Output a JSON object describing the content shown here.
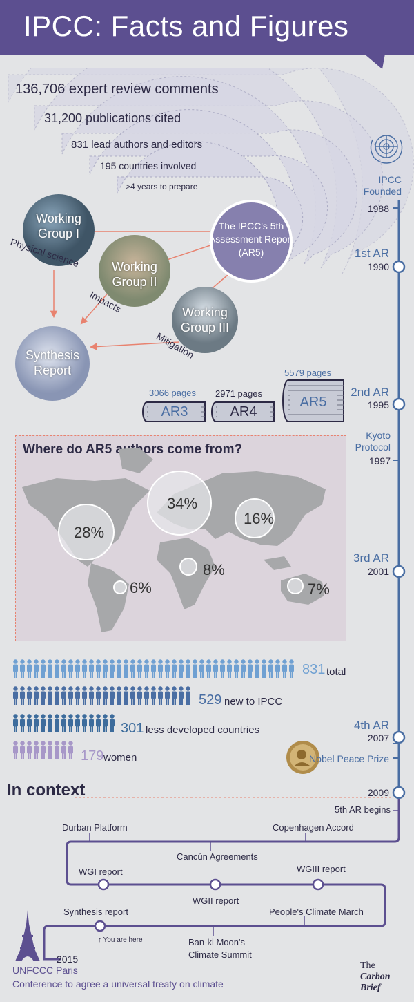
{
  "header": {
    "title": "IPCC: Facts and Figures"
  },
  "facts": [
    "136,706 expert review comments",
    "31,200 publications cited",
    "831 lead authors and editors",
    "195 countries involved",
    ">4 years to prepare"
  ],
  "diagram": {
    "wg1": [
      "Working",
      "Group I"
    ],
    "wg2": [
      "Working",
      "Group II"
    ],
    "wg3": [
      "Working",
      "Group III"
    ],
    "synthesis": [
      "Synthesis",
      "Report"
    ],
    "ar5": [
      "The IPCC's 5th",
      "Assessment Report",
      "(AR5)"
    ],
    "edge_physical": "Physical science",
    "edge_impacts": "Impacts",
    "edge_mitigation": "Mitigation"
  },
  "reports": [
    {
      "name": "AR3",
      "pages": "3066 pages"
    },
    {
      "name": "AR4",
      "pages": "2971 pages"
    },
    {
      "name": "AR5",
      "pages": "5579 pages"
    }
  ],
  "map": {
    "title": "Where do AR5 authors come from?",
    "north_america": "28%",
    "europe": "34%",
    "asia": "16%",
    "south_america": "6%",
    "africa": "8%",
    "oceania": "7%"
  },
  "authors": {
    "total_num": "831",
    "total_label": "total",
    "new_num": "529",
    "new_label": "new to IPCC",
    "ldc_num": "301",
    "ldc_label": "less developed countries",
    "women_num": "179",
    "women_label": "women"
  },
  "timeline": {
    "ipcc_founded": [
      "IPCC",
      "Founded"
    ],
    "y1988": "1988",
    "ar1": "1st AR",
    "y1990": "1990",
    "ar2": "2nd AR",
    "y1995": "1995",
    "kyoto": [
      "Kyoto",
      "Protocol"
    ],
    "y1997": "1997",
    "ar3": "3rd AR",
    "y2001": "2001",
    "ar4": "4th AR",
    "y2007": "2007",
    "nobel": "Nobel Peace Prize",
    "y2009": "2009",
    "ar5_begins": "5th AR begins"
  },
  "context": {
    "title": "In context",
    "durban": "Durban Platform",
    "copenhagen": "Copenhagen Accord",
    "cancun": "Cancún Agreements",
    "wgi": "WGI report",
    "wgii": "WGII report",
    "wgiii": "WGIII report",
    "synthesis": "Synthesis report",
    "peoples_march": "People's Climate March",
    "you_are_here": "You are here",
    "ban_ki_moon": [
      "Ban-ki Moon's",
      "Climate Summit"
    ],
    "y2015": "2015",
    "unfccc": "UNFCCC Paris",
    "conference": "Conference to agree a universal treaty on climate"
  },
  "brand": [
    "The",
    "Carbon",
    "Brief"
  ],
  "colors": {
    "header": "#5c4f90",
    "timeline": "#4a6ea3",
    "arrow": "#e8826f",
    "total": "#6fa0d2",
    "new": "#4a6ea3",
    "ldc": "#3d6c9c",
    "women": "#a797c8"
  }
}
